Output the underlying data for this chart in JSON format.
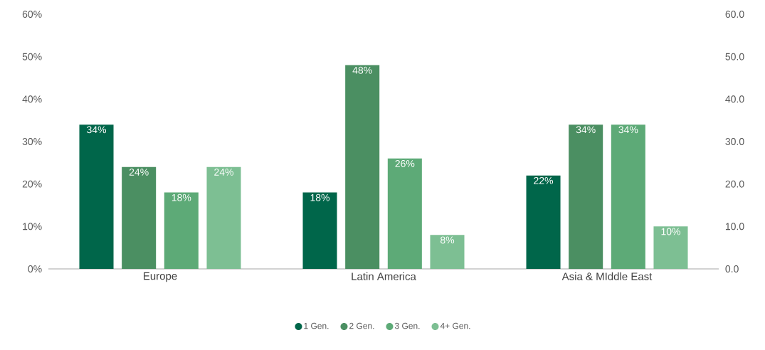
{
  "chart_data": {
    "type": "bar",
    "categories": [
      "Europe",
      "Latin America",
      "Asia & MIddle East"
    ],
    "series": [
      {
        "name": "1 Gen.",
        "color": "#00664a",
        "values": [
          34,
          18,
          22
        ],
        "value_labels": [
          "34%",
          "18%",
          "22%"
        ]
      },
      {
        "name": "2 Gen.",
        "color": "#4b8f62",
        "values": [
          24,
          48,
          34
        ],
        "value_labels": [
          "24%",
          "48%",
          "34%"
        ]
      },
      {
        "name": "3 Gen.",
        "color": "#5daa77",
        "values": [
          18,
          26,
          34
        ],
        "value_labels": [
          "18%",
          "26%",
          "34%"
        ]
      },
      {
        "name": "4+ Gen.",
        "color": "#7dbf93",
        "values": [
          24,
          8,
          10
        ],
        "value_labels": [
          "24%",
          "8%",
          "10%"
        ]
      }
    ],
    "ylim": [
      0,
      60
    ],
    "yticks": [
      {
        "value": 0,
        "label": "0%"
      },
      {
        "value": 10,
        "label": "10%"
      },
      {
        "value": 20,
        "label": "20%"
      },
      {
        "value": 30,
        "label": "30%"
      },
      {
        "value": 40,
        "label": "40%"
      },
      {
        "value": 50,
        "label": "50%"
      },
      {
        "value": 60,
        "label": "60%"
      }
    ],
    "y2lim": [
      0,
      60
    ],
    "y2ticks": [
      {
        "value": 0,
        "label": "0.0"
      },
      {
        "value": 10,
        "label": "10.0"
      },
      {
        "value": 20,
        "label": "20.0"
      },
      {
        "value": 30,
        "label": "30.0"
      },
      {
        "value": 40,
        "label": "40.0"
      },
      {
        "value": 50,
        "label": "50.0"
      },
      {
        "value": 60,
        "label": "60.0"
      }
    ],
    "legend": "bottom",
    "marker": "circle",
    "grid": false
  }
}
